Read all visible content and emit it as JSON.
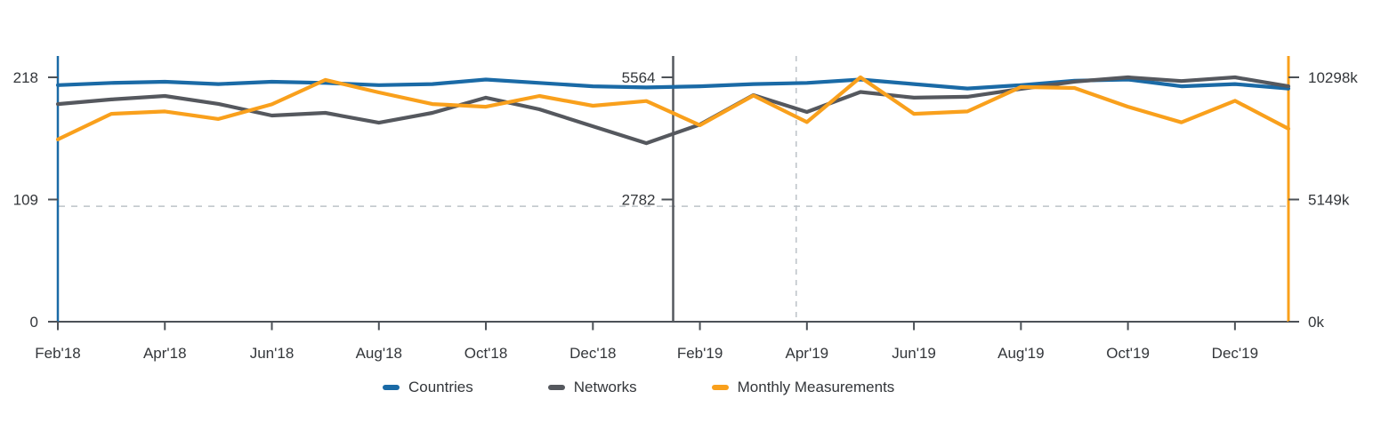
{
  "chart_data": {
    "type": "line",
    "x": [
      "Feb'18",
      "Mar'18",
      "Apr'18",
      "May'18",
      "Jun'18",
      "Jul'18",
      "Aug'18",
      "Sep'18",
      "Oct'18",
      "Nov'18",
      "Dec'18",
      "Jan'19",
      "Feb'19",
      "Mar'19",
      "Apr'19",
      "May'19",
      "Jun'19",
      "Jul'19",
      "Aug'19",
      "Sep'19",
      "Oct'19",
      "Nov'19",
      "Dec'19",
      "Jan'20"
    ],
    "x_tick_labels": [
      "Feb'18",
      "Apr'18",
      "Jun'18",
      "Aug'18",
      "Oct'18",
      "Dec'18",
      "Feb'19",
      "Apr'19",
      "Jun'19",
      "Aug'19",
      "Oct'19",
      "Dec'19"
    ],
    "series": [
      {
        "name": "Countries",
        "axis": "left",
        "color": "#1a6aa6",
        "values": [
          211,
          213,
          214,
          212,
          214,
          213,
          211,
          212,
          216,
          213,
          210,
          209,
          210,
          212,
          213,
          216,
          212,
          208,
          211,
          215,
          216,
          210,
          212,
          208
        ]
      },
      {
        "name": "Networks",
        "axis": "middle",
        "color": "#55585e",
        "values": [
          4955,
          5060,
          5140,
          4960,
          4695,
          4755,
          4530,
          4755,
          5100,
          4835,
          4450,
          4065,
          4490,
          5160,
          4775,
          5230,
          5100,
          5120,
          5300,
          5465,
          5564,
          5480,
          5564,
          5360
        ]
      },
      {
        "name": "Monthly Measurements",
        "axis": "right",
        "color": "#f9a01c",
        "values": [
          7680,
          8760,
          8860,
          8540,
          9160,
          10190,
          9660,
          9170,
          9060,
          9510,
          9100,
          9300,
          8280,
          9530,
          8410,
          10298,
          8760,
          8860,
          9890,
          9850,
          9060,
          8400,
          9310,
          8130
        ]
      }
    ],
    "axes": {
      "left": {
        "max": 218,
        "color": "#1a6aa6",
        "ticks": [
          {
            "value": 0,
            "label": "0"
          },
          {
            "value": 109,
            "label": "109"
          },
          {
            "value": 218,
            "label": "218"
          }
        ]
      },
      "middle": {
        "max": 5564,
        "color": "#55585e",
        "ticks": [
          {
            "value": 2782,
            "label": "2782"
          },
          {
            "value": 5564,
            "label": "5564"
          }
        ]
      },
      "right": {
        "max": 10298,
        "color": "#f9a01c",
        "ticks": [
          {
            "value": 0,
            "label": "0k"
          },
          {
            "value": 5149,
            "label": "5149k"
          },
          {
            "value": 10298,
            "label": "10298k"
          }
        ]
      }
    },
    "reference_lines": {
      "h_ref_left_value": 103,
      "v_ref_month_index": 13.8
    },
    "legend": [
      {
        "label": "Countries",
        "color": "#1a6aa6"
      },
      {
        "label": "Networks",
        "color": "#55585e"
      },
      {
        "label": "Monthly Measurements",
        "color": "#f9a01c"
      }
    ],
    "ylim_left": [
      0,
      218
    ],
    "ylim_middle": [
      0,
      5564
    ],
    "ylim_right_k": [
      0,
      10298
    ],
    "grid": "dashed-reference-lines-only",
    "legend_position": "bottom"
  }
}
